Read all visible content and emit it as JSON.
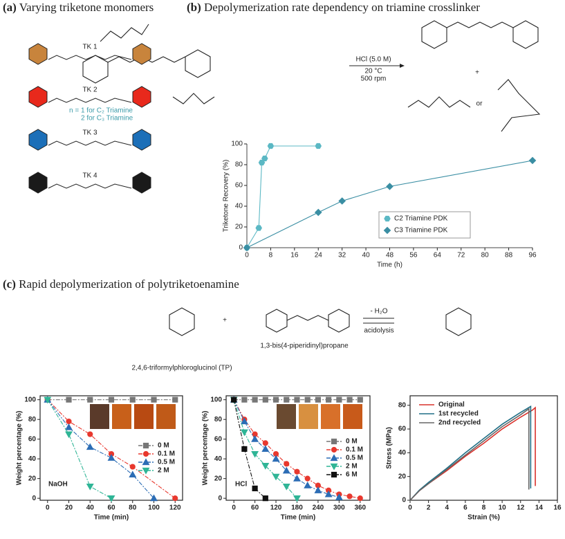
{
  "panel_a": {
    "label": "(a)",
    "title": "Varying triketone monomers",
    "monomers": [
      {
        "label": "TK 1",
        "color": "#c8843c"
      },
      {
        "label": "TK 2",
        "color": "#e8291c"
      },
      {
        "label": "TK 3",
        "color": "#1c6fb8"
      },
      {
        "label": "TK 4",
        "color": "#1a1a1a"
      }
    ]
  },
  "panel_b": {
    "label": "(b)",
    "title": "Depolymerization rate dependency on triamine crosslinker",
    "conditions": [
      "HCl (5.0 M)",
      "20 °C",
      "500 rpm"
    ],
    "plus": "+",
    "or": "or",
    "note": [
      "n = 1 for C₂ Triamine",
      "2 for C₃ Triamine"
    ]
  },
  "panel_c": {
    "label": "(c)",
    "title": "Rapid depolymerization of polytriketoenamine",
    "reactant_1": "2,4,6-triformylphloroglucinol (TP)",
    "reactant_2": "1,3-bis(4-piperidinyl)propane",
    "plus": "+",
    "byproduct": "- H₂O",
    "condition": "acidolysis"
  },
  "chart_data": [
    {
      "type": "line",
      "x_label": "Time (h)",
      "y_label": "Triketone Recovery (%)",
      "xlim": [
        0,
        96
      ],
      "ylim": [
        0,
        100
      ],
      "xticks": [
        0,
        8,
        16,
        24,
        32,
        40,
        48,
        56,
        64,
        72,
        80,
        88,
        96
      ],
      "yticks": [
        0,
        20,
        40,
        60,
        80,
        100
      ],
      "series": [
        {
          "name": "C2 Triamine PDK",
          "color": "#5bb8c4",
          "marker": "hexagon",
          "x": [
            0,
            4,
            5,
            6,
            8,
            24
          ],
          "values": [
            0,
            19,
            82,
            86,
            98,
            98
          ]
        },
        {
          "name": "C3 Triamine PDK",
          "color": "#3a8ea3",
          "marker": "diamond",
          "x": [
            0,
            24,
            32,
            48,
            96
          ],
          "values": [
            0,
            34,
            45,
            59,
            84
          ]
        }
      ]
    },
    {
      "type": "line",
      "annotation": "NaOH",
      "x_label": "Time (min)",
      "y_label": "Weight percentage (%)",
      "xlim": [
        -7,
        127
      ],
      "ylim": [
        -2,
        104
      ],
      "xticks": [
        0,
        20,
        40,
        60,
        80,
        100,
        120
      ],
      "yticks": [
        0,
        20,
        40,
        60,
        80,
        100
      ],
      "line_style": "dashdot",
      "series": [
        {
          "name": "0 M",
          "color": "#777777",
          "marker": "square",
          "x": [
            0,
            20,
            40,
            60,
            80,
            100,
            120
          ],
          "values": [
            100,
            100,
            100,
            100,
            100,
            100,
            100
          ]
        },
        {
          "name": "0.1 M",
          "color": "#e8382e",
          "marker": "circle",
          "x": [
            0,
            20,
            40,
            60,
            80,
            120
          ],
          "values": [
            100,
            78,
            65,
            45,
            32,
            0
          ]
        },
        {
          "name": "0.5 M",
          "color": "#2c6db5",
          "marker": "triangle",
          "x": [
            0,
            20,
            40,
            60,
            80,
            100
          ],
          "values": [
            100,
            72,
            52,
            41,
            24,
            0
          ]
        },
        {
          "name": "2 M",
          "color": "#2fb596",
          "marker": "triangle-down",
          "x": [
            0,
            20,
            40,
            60
          ],
          "values": [
            100,
            65,
            12,
            0
          ]
        }
      ]
    },
    {
      "type": "line",
      "annotation": "HCl",
      "x_label": "Time (min)",
      "y_label": "Weight percentage (%)",
      "xlim": [
        -22,
        388
      ],
      "ylim": [
        -2,
        104
      ],
      "xticks": [
        0,
        60,
        120,
        180,
        240,
        300,
        360
      ],
      "yticks": [
        0,
        20,
        40,
        60,
        80,
        100
      ],
      "line_style": "dashdot",
      "series": [
        {
          "name": "0 M",
          "color": "#777777",
          "marker": "square",
          "x": [
            0,
            30,
            60,
            90,
            120,
            150,
            180,
            210,
            240,
            270,
            300,
            330,
            360
          ],
          "values": [
            100,
            100,
            100,
            100,
            100,
            100,
            100,
            100,
            100,
            100,
            100,
            100,
            100
          ]
        },
        {
          "name": "0.1 M",
          "color": "#e8382e",
          "marker": "circle",
          "x": [
            0,
            30,
            60,
            90,
            120,
            150,
            180,
            210,
            240,
            270,
            300,
            330,
            360
          ],
          "values": [
            100,
            80,
            65,
            56,
            45,
            35,
            27,
            20,
            13,
            8,
            4,
            2,
            0
          ]
        },
        {
          "name": "0.5 M",
          "color": "#2c6db5",
          "marker": "triangle",
          "x": [
            0,
            30,
            60,
            90,
            120,
            150,
            180,
            210,
            240,
            270,
            300
          ],
          "values": [
            100,
            78,
            60,
            50,
            40,
            28,
            20,
            13,
            8,
            4,
            1
          ]
        },
        {
          "name": "2 M",
          "color": "#2fb596",
          "marker": "triangle-down",
          "x": [
            0,
            30,
            60,
            90,
            120,
            150,
            180
          ],
          "values": [
            100,
            67,
            45,
            33,
            22,
            12,
            0
          ]
        },
        {
          "name": "6 M",
          "color": "#111111",
          "marker": "square",
          "x": [
            0,
            30,
            60,
            90
          ],
          "values": [
            100,
            50,
            10,
            0
          ]
        }
      ]
    },
    {
      "type": "line",
      "x_label": "Strain (%)",
      "y_label": "Stress (MPa)",
      "xlim": [
        0,
        16
      ],
      "ylim": [
        0,
        88
      ],
      "xticks": [
        0,
        2,
        4,
        6,
        8,
        10,
        12,
        14,
        16
      ],
      "yticks": [
        0,
        20,
        40,
        60,
        80
      ],
      "series": [
        {
          "name": "Original",
          "color": "#d9302a",
          "marker": "none",
          "x": [
            0,
            1,
            2,
            4,
            6,
            8,
            10,
            12,
            13.3,
            13.6,
            13.6
          ],
          "values": [
            0,
            8,
            14,
            25,
            37,
            48,
            60,
            70,
            76,
            78,
            12
          ]
        },
        {
          "name": "1st recycled",
          "color": "#1f6f86",
          "marker": "none",
          "x": [
            0,
            1,
            2,
            4,
            6,
            8,
            10,
            12,
            13.1,
            13.1
          ],
          "values": [
            0,
            8.5,
            15,
            27,
            40,
            52,
            64,
            74,
            79,
            10
          ]
        },
        {
          "name": "2nd recycled",
          "color": "#666666",
          "marker": "none",
          "x": [
            0,
            1,
            2,
            4,
            6,
            8,
            10,
            12,
            12.9,
            12.9
          ],
          "values": [
            0,
            8,
            14,
            26,
            38,
            50,
            62,
            72,
            77,
            9
          ]
        }
      ]
    }
  ]
}
